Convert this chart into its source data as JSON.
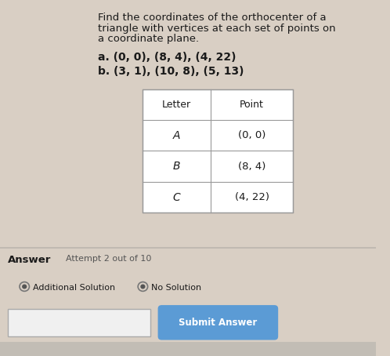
{
  "title_line1": "Find the coordinates of the orthocenter of a",
  "title_line2": "triangle with vertices at each set of points on",
  "title_line3": "a coordinate plane.",
  "problem_a": "a. (0, 0), (8, 4), (4, 22)",
  "problem_b": "b. (3, 1), (10, 8), (5, 13)",
  "table_headers": [
    "Letter",
    "Point"
  ],
  "table_rows": [
    [
      "A",
      "(0, 0)"
    ],
    [
      "B",
      "(8, 4)"
    ],
    [
      "C",
      "(4, 22)"
    ]
  ],
  "answer_label": "Answer",
  "attempt_text": "Attempt 2 out of 10",
  "additional_solution_text": "Additional Solution",
  "no_solution_text": "No Solution",
  "submit_button_text": "Submit Answer",
  "bg_color": "#d9cfc4",
  "table_bg": "#ffffff",
  "submit_btn_color": "#5b9bd5",
  "submit_btn_text_color": "#ffffff",
  "input_box_bg": "#f0f0f0",
  "taskbar_color": "#c2bdb5",
  "text_color": "#1a1a1a",
  "divider_color": "#bbb5ae"
}
